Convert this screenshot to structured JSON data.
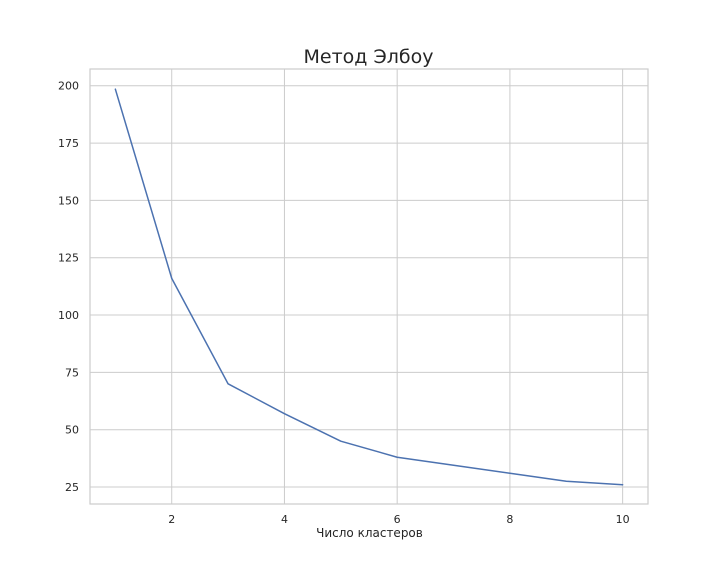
{
  "chart_data": {
    "type": "line",
    "title": "Метод Элбоу",
    "xlabel": "Число кластеров",
    "ylabel": "",
    "xlim": [
      0.55,
      10.45
    ],
    "ylim": [
      17.6,
      207.3
    ],
    "xticks": [
      2,
      4,
      6,
      8,
      10
    ],
    "yticks": [
      25,
      50,
      75,
      100,
      125,
      150,
      175,
      200
    ],
    "grid": true,
    "legend": "none",
    "series": [
      {
        "color": "#4c72b0",
        "x": [
          1,
          2,
          3,
          4,
          5,
          6,
          7,
          8,
          9,
          10
        ],
        "y": [
          198.5,
          116,
          70,
          57,
          45,
          38,
          34.5,
          31,
          27.5,
          26
        ]
      }
    ]
  }
}
